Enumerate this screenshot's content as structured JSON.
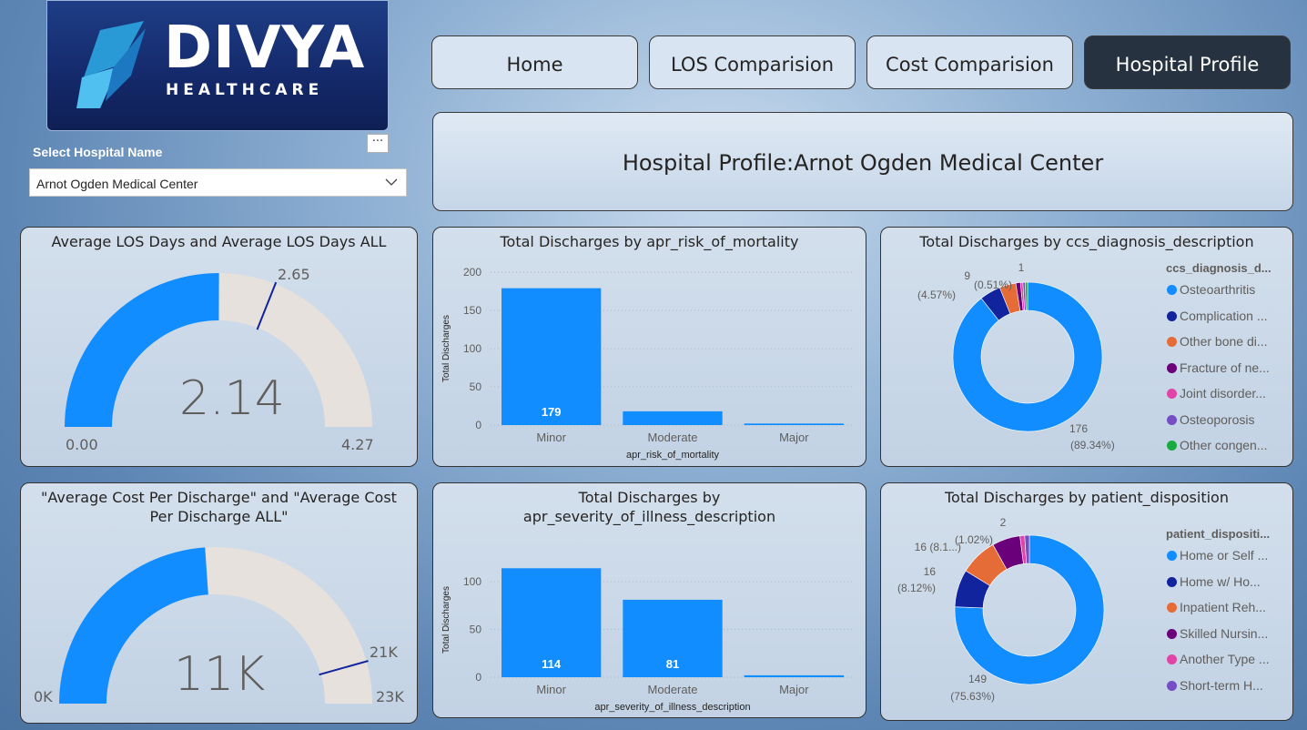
{
  "logo": {
    "brand": "DIVYA",
    "sub": "HEALTHCARE"
  },
  "slicer": {
    "title": "Select Hospital Name",
    "value": "Arnot Ogden Medical Center",
    "more": "···"
  },
  "nav": [
    {
      "label": "Home",
      "active": false
    },
    {
      "label": "LOS Comparision",
      "active": false
    },
    {
      "label": "Cost Comparision",
      "active": false
    },
    {
      "label": "Hospital Profile",
      "active": true
    }
  ],
  "page_title": "Hospital Profile:Arnot Ogden Medical Center",
  "colors": {
    "accent": "#118DFF",
    "gauge_bg": "#E6E1DC",
    "target": "#12239E"
  },
  "gauge_los": {
    "title": "Average LOS Days and Average LOS Days ALL",
    "value": "2.14",
    "min": "0.00",
    "max": "4.27",
    "target": "2.65"
  },
  "gauge_cost": {
    "title": "\"Average Cost Per Discharge\" and \"Average Cost Per Discharge ALL\"",
    "value": "11K",
    "min": "0K",
    "max": "23K",
    "target": "21K"
  },
  "chart_data": [
    {
      "type": "bar",
      "title": "Total Discharges by apr_risk_of_mortality",
      "xlabel": "apr_risk_of_mortality",
      "ylabel": "Total Discharges",
      "categories": [
        "Minor",
        "Moderate",
        "Major"
      ],
      "values": [
        179,
        18,
        2
      ],
      "data_labels": [
        "179",
        "",
        ""
      ],
      "ylim": [
        0,
        200
      ],
      "yticks": [
        "0",
        "50",
        "100",
        "150",
        "200"
      ]
    },
    {
      "type": "bar",
      "title": "Total Discharges by apr_severity_of_illness_description",
      "xlabel": "apr_severity_of_illness_description",
      "ylabel": "Total Discharges",
      "categories": [
        "Minor",
        "Moderate",
        "Major"
      ],
      "values": [
        114,
        81,
        2
      ],
      "data_labels": [
        "114",
        "81",
        ""
      ],
      "ylim": [
        0,
        120
      ],
      "yticks": [
        "0",
        "50",
        "100"
      ]
    },
    {
      "type": "pie",
      "title": "Total Discharges by ccs_diagnosis_description",
      "legend_title": "ccs_diagnosis_d...",
      "categories": [
        "Osteoarthritis",
        "Complication ...",
        "Other bone di...",
        "Fracture of ne...",
        "Joint disorder...",
        "Osteoporosis",
        "Other congen..."
      ],
      "values": [
        176,
        9,
        7,
        2,
        1,
        1,
        1
      ],
      "colors": [
        "#118DFF",
        "#12239E",
        "#E66C37",
        "#6B007B",
        "#E044A7",
        "#744EC2",
        "#1AAB40"
      ],
      "annotations": [
        "176",
        "(89.34%)",
        "9",
        "(4.57%)",
        "(0.51%)",
        "1"
      ]
    },
    {
      "type": "pie",
      "title": "Total Discharges by patient_disposition",
      "legend_title": "patient_dispositi...",
      "categories": [
        "Home or Self ...",
        "Home w/ Ho...",
        "Inpatient Reh...",
        "Skilled Nursin...",
        "Another Type ...",
        "Short-term H..."
      ],
      "values": [
        149,
        16,
        16,
        12,
        2,
        2
      ],
      "colors": [
        "#118DFF",
        "#12239E",
        "#E66C37",
        "#6B007B",
        "#E044A7",
        "#744EC2"
      ],
      "annotations": [
        "149",
        "(75.63%)",
        "16",
        "(8.12%)",
        "16 (8.1...)",
        "(1.02%)",
        "2"
      ]
    }
  ]
}
